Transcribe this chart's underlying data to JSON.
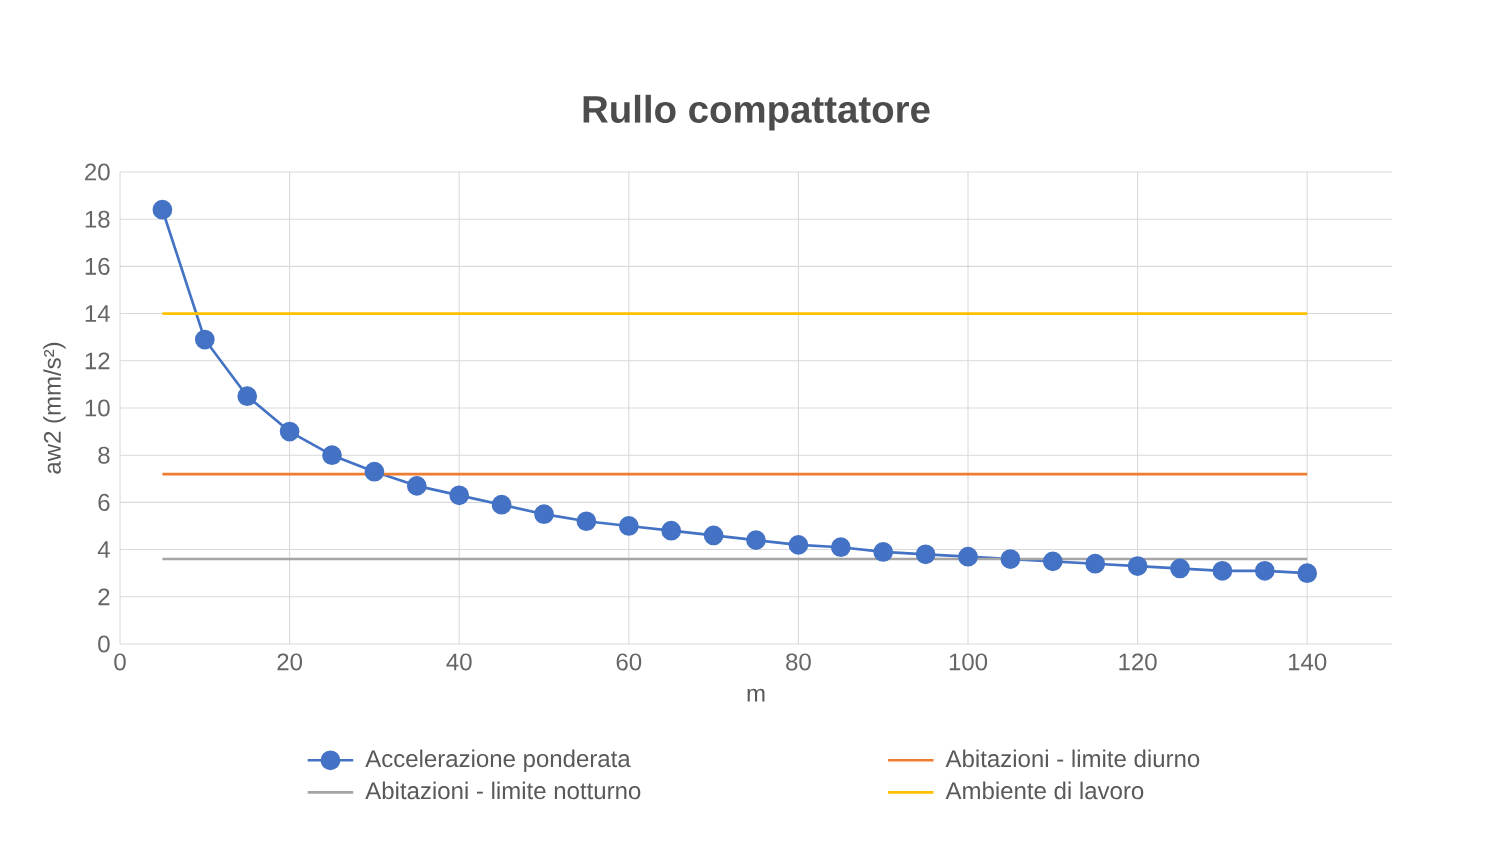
{
  "chart_data": {
    "type": "line",
    "title": "Rullo compattatore",
    "xlabel": "m",
    "ylabel": "aw2 (mm/s²)",
    "xlim": [
      0,
      150
    ],
    "xticks": [
      0,
      20,
      40,
      60,
      80,
      100,
      120,
      140
    ],
    "ylim": [
      0,
      20
    ],
    "yticks": [
      0,
      2,
      4,
      6,
      8,
      10,
      12,
      14,
      16,
      18,
      20
    ],
    "grid": true,
    "legend": "bottom",
    "line_style": "solid",
    "series": [
      {
        "name": "Accelerazione ponderata",
        "color": "#4472c4",
        "marker": "circle",
        "x": [
          5,
          10,
          15,
          20,
          25,
          30,
          35,
          40,
          45,
          50,
          55,
          60,
          65,
          70,
          75,
          80,
          85,
          90,
          95,
          100,
          105,
          110,
          115,
          120,
          125,
          130,
          135,
          140
        ],
        "values": [
          18.4,
          12.9,
          10.5,
          9.0,
          8.0,
          7.3,
          6.7,
          6.3,
          5.9,
          5.5,
          5.2,
          5.0,
          4.8,
          4.6,
          4.4,
          4.2,
          4.1,
          3.9,
          3.8,
          3.7,
          3.6,
          3.5,
          3.4,
          3.3,
          3.2,
          3.1,
          3.1,
          3.0
        ]
      },
      {
        "name": "Abitazioni - limite diurno",
        "color": "#ed7d31",
        "marker": "none",
        "x": [
          5,
          140
        ],
        "values": [
          7.2,
          7.2
        ]
      },
      {
        "name": "Abitazioni - limite notturno",
        "color": "#a5a5a5",
        "marker": "none",
        "x": [
          5,
          140
        ],
        "values": [
          3.6,
          3.6
        ]
      },
      {
        "name": "Ambiente di lavoro",
        "color": "#ffc000",
        "marker": "none",
        "x": [
          5,
          140
        ],
        "values": [
          14.0,
          14.0
        ]
      }
    ]
  }
}
